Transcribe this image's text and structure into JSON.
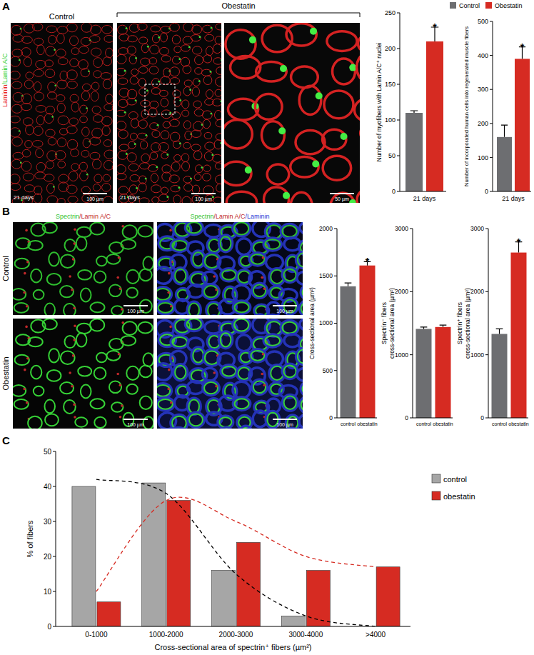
{
  "figure": {
    "panels": [
      {
        "label": "A",
        "stain": [
          {
            "text": "Laminin",
            "color": "#e8231f"
          },
          {
            "text": "/Lamin A/C",
            "color": "#3ad13a"
          }
        ],
        "group": "Obestatin",
        "images": [
          {
            "title": "Control",
            "time": "21 days",
            "scale_bar": "100 µm"
          },
          {
            "time": "21 days",
            "scale_bar": "100 µm"
          },
          {
            "scale_bar": "50 µm"
          }
        ]
      },
      {
        "label": "B",
        "columns": [
          [
            {
              "text": "Spectrin",
              "color": "#2fbf2f"
            },
            {
              "text": "/Lamin A/C",
              "color": "#c0282a"
            }
          ],
          [
            {
              "text": "Spectrin",
              "color": "#2fbf2f"
            },
            {
              "text": "/Lamin A/C",
              "color": "#c0282a"
            },
            {
              "text": "/Laminin",
              "color": "#2b3bd6"
            }
          ]
        ],
        "rows": [
          "Control",
          "Obestatin"
        ],
        "scale_bar": "100 µm"
      },
      {
        "label": "C"
      }
    ]
  },
  "chart_data": [
    {
      "type": "bar",
      "y_label": [
        "Number of myofibers with Lamin A/C⁺ nuclei"
      ],
      "categories": [
        "21 days"
      ],
      "series": [
        {
          "color": "#6d6e71",
          "values": [
            110
          ],
          "errors": [
            3
          ]
        },
        {
          "color": "#d62b22",
          "values": [
            210
          ],
          "errors": [
            20
          ],
          "annotations": [
            "*"
          ]
        }
      ],
      "ylim": [
        0,
        250
      ],
      "yticks": [
        0,
        50,
        100,
        150,
        200,
        250
      ]
    },
    {
      "type": "bar",
      "y_label": [
        "Number of incorporated human cells into regenerated muscle fibers"
      ],
      "categories": [
        "21 days"
      ],
      "series": [
        {
          "name": "Control",
          "color": "#6d6e71",
          "values": [
            160
          ],
          "errors": [
            35
          ]
        },
        {
          "name": "Obestatin",
          "color": "#d62b22",
          "values": [
            390
          ],
          "errors": [
            35
          ],
          "annotations": [
            "*"
          ]
        }
      ],
      "legend": "top",
      "ylim": [
        0,
        500
      ],
      "yticks": [
        0,
        100,
        200,
        300,
        400,
        500
      ]
    },
    {
      "type": "bar",
      "y_label": [
        "Cross-sectional area (µm²)"
      ],
      "categories": [
        "control",
        "obestatin"
      ],
      "values": [
        1390,
        1610
      ],
      "errors": [
        35,
        40
      ],
      "colors": [
        "#6d6e71",
        "#d62b22"
      ],
      "annotations": [
        null,
        "*"
      ],
      "ylim": [
        0,
        2000
      ],
      "yticks": [
        0,
        500,
        1000,
        1500,
        2000
      ]
    },
    {
      "type": "bar",
      "y_label": [
        "Spectrin⁻ fibers",
        "cross-sectional area (µm²)"
      ],
      "categories": [
        "control",
        "obestatin"
      ],
      "values": [
        1410,
        1440
      ],
      "errors": [
        30,
        30
      ],
      "colors": [
        "#6d6e71",
        "#d62b22"
      ],
      "ylim": [
        0,
        3000
      ],
      "yticks": [
        0,
        1000,
        2000,
        3000
      ]
    },
    {
      "type": "bar",
      "y_label": [
        "Spectrin⁺ fibers",
        "cross-sectional area (µm²)"
      ],
      "categories": [
        "control",
        "obestatin"
      ],
      "values": [
        1330,
        2620
      ],
      "errors": [
        80,
        170
      ],
      "colors": [
        "#6d6e71",
        "#d62b22"
      ],
      "annotations": [
        null,
        "*"
      ],
      "ylim": [
        0,
        3000
      ],
      "yticks": [
        0,
        1000,
        2000,
        3000
      ]
    },
    {
      "type": "bar",
      "y_label": [
        "% of fibers"
      ],
      "x_label": "Cross-sectional area of spectrin⁺ fibers (µm²)",
      "categories": [
        "0-1000",
        "1000-2000",
        "2000-3000",
        "3000-4000",
        ">4000"
      ],
      "series": [
        {
          "name": "control",
          "color": "#a6a6a6",
          "values": [
            40,
            41,
            16,
            3,
            0
          ]
        },
        {
          "name": "obestatin",
          "color": "#d62b22",
          "values": [
            7,
            36,
            24,
            16,
            17
          ]
        },
        {
          "type": "line",
          "line_style": "dashed",
          "color": "#000000",
          "values": [
            42,
            38,
            15,
            3,
            0
          ]
        },
        {
          "type": "line",
          "line_style": "dashed",
          "color": "#d62b22",
          "values": [
            10,
            36,
            30,
            20,
            17
          ]
        }
      ],
      "legend": "top-right",
      "ylim": [
        0,
        50
      ],
      "yticks": [
        0,
        10,
        20,
        30,
        40,
        50
      ]
    }
  ]
}
